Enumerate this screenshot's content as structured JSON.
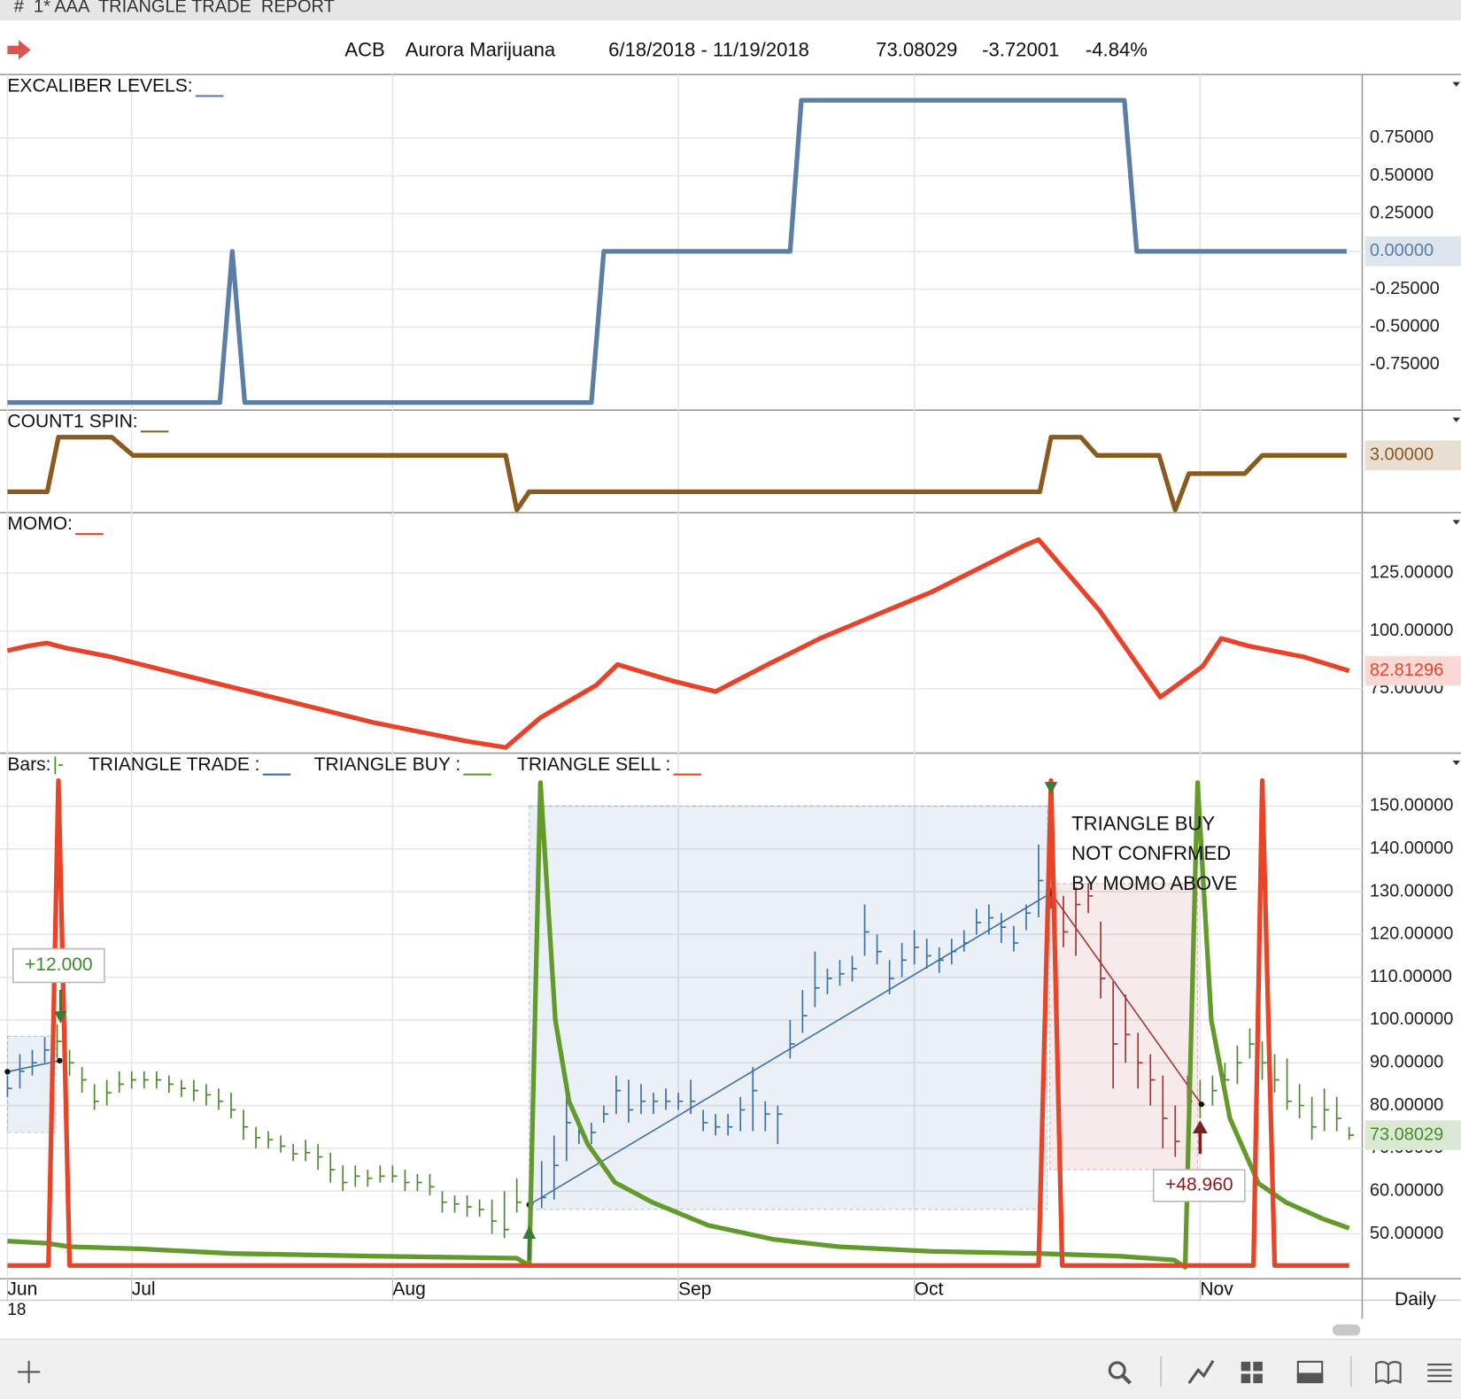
{
  "header": {
    "window_title": "#  1* AAA  TRIANGLE TRADE  REPORT",
    "symbol": "ACB",
    "name": "Aurora Marijuana",
    "range": "6/18/2018 - 11/19/2018",
    "last": "73.08029",
    "change": "-3.72001",
    "change_pct": "-4.84%"
  },
  "chart_data": [
    {
      "type": "line",
      "title": "EXCALIBER LEVELS:",
      "ylim": [
        -1.05,
        1.17
      ],
      "yticks": [
        {
          "value": 0.75,
          "label": "0.75000"
        },
        {
          "value": 0.5,
          "label": "0.50000"
        },
        {
          "value": 0.25,
          "label": "0.25000"
        },
        {
          "value": 0,
          "label": "0.00000"
        },
        {
          "value": -0.25,
          "label": "-0.25000"
        },
        {
          "value": -0.5,
          "label": "-0.50000"
        },
        {
          "value": -0.75,
          "label": "-0.75000"
        }
      ],
      "series": [
        {
          "color": "#5b7ea6",
          "x": [
            0,
            17.1,
            18.1,
            19.1,
            47,
            48,
            63,
            63.9,
            89.9,
            90.9,
            107.8
          ],
          "values": [
            -1,
            -1,
            0,
            -1,
            -1,
            0,
            0,
            1,
            1,
            0,
            0
          ],
          "value_labels": [
            null,
            null,
            null,
            null,
            null,
            null,
            null,
            null,
            null,
            null,
            "0.00000"
          ]
        }
      ]
    },
    {
      "type": "line",
      "title": "COUNT1 SPIN:",
      "ylim": [
        -0.15,
        5.49
      ],
      "series": [
        {
          "color": "#8b5a1e",
          "x": [
            0,
            3.2,
            4.1,
            8.4,
            10.1,
            40.1,
            41,
            42,
            83.1,
            84,
            86.4,
            87.7,
            92.7,
            94,
            95.1,
            99.6,
            101,
            107.8
          ],
          "values": [
            1,
            1,
            4,
            4,
            3,
            3,
            0,
            1,
            1,
            4,
            4,
            3,
            3,
            0,
            2,
            2,
            3,
            3
          ],
          "value_labels": [
            null,
            null,
            null,
            null,
            null,
            null,
            null,
            null,
            null,
            null,
            null,
            null,
            null,
            null,
            null,
            null,
            null,
            "3.00000"
          ]
        }
      ]
    },
    {
      "type": "line",
      "title": "MOMO:",
      "ylim": [
        47.2,
        151.2
      ],
      "yticks": [
        {
          "value": 75,
          "label": "75.00000"
        },
        {
          "value": 100,
          "label": "100.00000"
        },
        {
          "value": 125,
          "label": "125.00000"
        }
      ],
      "series": [
        {
          "color": "#e8432a",
          "x": [
            0,
            1.65,
            3.15,
            4.65,
            8.4,
            14.4,
            21.9,
            29.4,
            36.9,
            40.1,
            42.9,
            47.4,
            49.1,
            53.4,
            57,
            60.9,
            65.4,
            69.9,
            74.4,
            78.9,
            81.9,
            83,
            87.9,
            92.8,
            96.2,
            97.7,
            99.9,
            104.4,
            108
          ],
          "values": [
            91.5,
            93.5,
            94.8,
            92.7,
            88.7,
            80.6,
            70.6,
            60.5,
            52.4,
            49.6,
            62.5,
            76.6,
            85.5,
            78.6,
            73.8,
            84.7,
            96.8,
            106.9,
            116.9,
            129,
            137.1,
            139.5,
            108.9,
            71.4,
            84.7,
            96.8,
            93.5,
            88.7,
            82.81296
          ]
        }
      ]
    },
    {
      "type": "hlc",
      "ylim": [
        39.5,
        162.4
      ],
      "yticks": [
        {
          "value": 50,
          "label": "50.00000"
        },
        {
          "value": 60,
          "label": "60.00000"
        },
        {
          "value": 70,
          "label": "70.00000"
        },
        {
          "value": 80,
          "label": "80.00000"
        },
        {
          "value": 90,
          "label": "90.00000"
        },
        {
          "value": 100,
          "label": "100.00000"
        },
        {
          "value": 110,
          "label": "110.00000"
        },
        {
          "value": 120,
          "label": "120.00000"
        },
        {
          "value": 130,
          "label": "130.00000"
        },
        {
          "value": 140,
          "label": "140.00000"
        },
        {
          "value": 150,
          "label": "150.00000"
        }
      ],
      "xlim": [
        0,
        108
      ],
      "xticks": [
        {
          "value": 0,
          "label": "Jun"
        },
        {
          "value": 10,
          "label": "Jul"
        },
        {
          "value": 31,
          "label": "Aug"
        },
        {
          "value": 54,
          "label": "Sep"
        },
        {
          "value": 73,
          "label": "Oct"
        },
        {
          "value": 96,
          "label": "Nov"
        }
      ],
      "xtick_year": "18",
      "bars": {
        "name": "Bars:",
        "symbol": "|-",
        "color": "#4a8a2a",
        "x": [
          0,
          1,
          2,
          3,
          4,
          5,
          6,
          7,
          8,
          9,
          10,
          11,
          12,
          13,
          14,
          15,
          16,
          17,
          18,
          19,
          20,
          21,
          22,
          23,
          24,
          25,
          26,
          27,
          28,
          29,
          30,
          31,
          32,
          33,
          34,
          35,
          36,
          37,
          38,
          39,
          40,
          41,
          42,
          43,
          44,
          45,
          46,
          47,
          48,
          49,
          50,
          51,
          52,
          53,
          54,
          55,
          56,
          57,
          58,
          59,
          60,
          61,
          62,
          63,
          64,
          65,
          66,
          67,
          68,
          69,
          70,
          71,
          72,
          73,
          74,
          75,
          76,
          77,
          78,
          79,
          80,
          81,
          82,
          83,
          84,
          85,
          86,
          87,
          88,
          89,
          90,
          91,
          92,
          93,
          94,
          95,
          96,
          97,
          98,
          99,
          100,
          101,
          102,
          103,
          104,
          105,
          106,
          107,
          108
        ],
        "high": [
          87,
          92,
          93,
          96,
          99,
          93,
          89,
          85,
          86,
          88,
          88,
          88,
          88,
          87,
          86,
          86,
          85,
          84,
          83,
          79,
          75,
          74,
          73,
          71,
          72,
          71,
          69,
          66,
          66,
          65,
          66,
          66,
          65,
          64,
          64,
          60,
          59,
          59,
          58,
          58,
          60,
          63,
          60,
          67,
          73,
          82,
          77,
          76,
          80,
          87,
          86,
          85,
          83,
          84,
          83,
          86,
          79,
          78,
          78,
          82,
          89,
          81,
          80,
          100,
          107,
          116,
          112,
          114,
          115,
          127,
          120,
          114,
          118,
          121,
          119,
          117,
          119,
          121,
          126,
          127,
          125,
          122,
          127,
          141,
          131,
          129,
          131,
          132,
          123,
          109,
          106,
          97,
          92,
          87,
          80,
          87,
          86,
          87,
          90,
          94,
          98,
          95,
          92,
          91,
          85,
          82,
          84,
          82,
          75
        ],
        "low": [
          82,
          84,
          87,
          90,
          91,
          87,
          83,
          79,
          80,
          83,
          84,
          84,
          84,
          83,
          82,
          81,
          80,
          79,
          77,
          72,
          70,
          70,
          69,
          67,
          67,
          65,
          62,
          60,
          61,
          61,
          62,
          62,
          60,
          60,
          59,
          55,
          55,
          54,
          54,
          50,
          49,
          55,
          55,
          56,
          58,
          67,
          71,
          71,
          76,
          78,
          76,
          78,
          78,
          79,
          79,
          78,
          74,
          73,
          73,
          74,
          74,
          74,
          71,
          91,
          97,
          103,
          106,
          108,
          109,
          115,
          113,
          106,
          110,
          113,
          112,
          111,
          113,
          116,
          120,
          120,
          118,
          116,
          121,
          124,
          126,
          117,
          115,
          125,
          105,
          84,
          90,
          84,
          80,
          70,
          68,
          76,
          77,
          80,
          83,
          85,
          91,
          86,
          83,
          79,
          77,
          72,
          74,
          74,
          72
        ],
        "close": [
          84,
          88,
          90,
          93,
          95,
          90,
          86,
          81,
          83,
          85,
          86,
          86,
          86,
          85,
          84,
          83.5,
          82.5,
          81,
          79,
          75,
          72.5,
          72,
          70.5,
          68.7,
          69,
          68,
          65,
          62,
          63.5,
          63,
          63.5,
          63.5,
          62,
          62,
          61,
          57.4,
          57,
          56.3,
          55.7,
          53,
          51,
          57.4,
          57,
          58.5,
          66,
          76,
          73.7,
          73.7,
          78,
          83.5,
          79,
          81,
          81,
          81,
          81,
          81,
          76,
          75,
          75,
          79,
          83.5,
          78,
          78,
          94.4,
          101,
          107.5,
          109.7,
          110.8,
          112,
          120.6,
          116,
          109.7,
          114,
          117,
          115,
          114,
          116,
          118,
          122.8,
          123.9,
          121.7,
          118,
          125,
          132.6,
          129,
          120.6,
          127,
          129,
          109.7,
          94.4,
          96.6,
          90,
          86,
          77,
          71.6,
          81,
          80.3,
          83.5,
          86,
          90,
          94.4,
          90,
          86,
          81,
          80,
          75,
          79,
          77,
          73.08029
        ]
      },
      "trades": {
        "name": "TRIANGLE TRADE :",
        "color": "#3a6fa8",
        "items": [
          {
            "color": "#3a6fa8",
            "box_x": [
              0,
              3.9
            ],
            "box_y": [
              73.7,
              96.2
            ],
            "x": [
              0,
              4.2
            ],
            "values": [
              87.9,
              90.5
            ]
          },
          {
            "color": "#3a6fa8",
            "box_x": [
              42,
              83.7
            ],
            "box_y": [
              55.7,
              150
            ],
            "x": [
              42,
              84
            ],
            "values": [
              56.8,
              129.7
            ]
          },
          {
            "color": "#a83232",
            "box_x": [
              83.9,
              95.8
            ],
            "box_y": [
              65,
              131.9
            ],
            "x": [
              84,
              96.1
            ],
            "values": [
              129.7,
              80.3
            ]
          }
        ]
      },
      "series": [
        {
          "name": "TRIANGLE BUY :",
          "color": "#639a2c",
          "x": [
            0,
            3.15,
            5,
            10.6,
            18.1,
            29.4,
            41,
            42,
            42.9,
            44.1,
            45.2,
            46.7,
            48.9,
            51.9,
            56.4,
            61.7,
            66.9,
            74.4,
            83,
            89.4,
            93.9,
            94.8,
            95.8,
            96.9,
            98.4,
            100.7,
            102.9,
            105.9,
            108
          ],
          "values": [
            48.3,
            47.8,
            47,
            46.5,
            45.4,
            44.8,
            44.3,
            42.6,
            155.5,
            100,
            81,
            71,
            62,
            57.4,
            52,
            48.7,
            47,
            45.9,
            45.4,
            44.8,
            43.9,
            42.2,
            155.5,
            100,
            77,
            61.8,
            57.4,
            53.5,
            51.3
          ]
        },
        {
          "name": "TRIANGLE SELL :",
          "color": "#ea4428",
          "x": [
            0,
            3.3,
            4.1,
            5,
            83,
            84,
            84.9,
            100.3,
            101,
            102,
            108
          ],
          "values": [
            42.6,
            42.6,
            156,
            42.6,
            42.6,
            156,
            42.6,
            42.6,
            156,
            42.6,
            42.6
          ]
        }
      ],
      "annotations": {
        "gain_1": "+12.000",
        "gain_2": "+48.960",
        "note": [
          "TRIANGLE BUY",
          "NOT CONFRMED",
          "BY MOMO ABOVE"
        ]
      }
    }
  ],
  "footer": {
    "period": "Daily"
  }
}
